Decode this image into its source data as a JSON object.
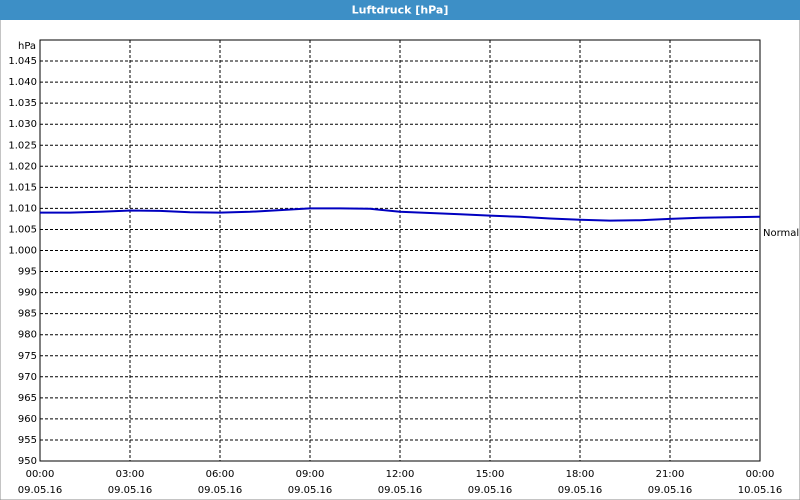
{
  "chart_data": {
    "type": "line",
    "title": "Luftdruck [hPa]",
    "y_label": "hPa",
    "x": [
      "09.05.16 00:00",
      "09.05.16 01:00",
      "09.05.16 02:00",
      "09.05.16 03:00",
      "09.05.16 04:00",
      "09.05.16 05:00",
      "09.05.16 06:00",
      "09.05.16 07:00",
      "09.05.16 08:00",
      "09.05.16 09:00",
      "09.05.16 10:00",
      "09.05.16 11:00",
      "09.05.16 12:00",
      "09.05.16 13:00",
      "09.05.16 14:00",
      "09.05.16 15:00",
      "09.05.16 16:00",
      "09.05.16 17:00",
      "09.05.16 18:00",
      "09.05.16 19:00",
      "09.05.16 20:00",
      "09.05.16 21:00",
      "09.05.16 22:00",
      "09.05.16 23:00",
      "10.05.16 00:00"
    ],
    "series": [
      {
        "name": "Normal",
        "color": "#0000c0",
        "values": [
          1009,
          1009,
          1009.2,
          1009.5,
          1009.4,
          1009.1,
          1009,
          1009.2,
          1009.6,
          1010,
          1010,
          1009.9,
          1009.2,
          1008.9,
          1008.6,
          1008.3,
          1008,
          1007.6,
          1007.3,
          1007.1,
          1007.2,
          1007.5,
          1007.8,
          1007.9,
          1008
        ]
      }
    ],
    "xlim": [
      "09.05.16 00:00",
      "10.05.16 00:00"
    ],
    "xticks": [
      {
        "value": "09.05.16 00:00",
        "label": [
          "00:00",
          "09.05.16"
        ]
      },
      {
        "value": "09.05.16 03:00",
        "label": [
          "03:00",
          "09.05.16"
        ]
      },
      {
        "value": "09.05.16 06:00",
        "label": [
          "06:00",
          "09.05.16"
        ]
      },
      {
        "value": "09.05.16 09:00",
        "label": [
          "09:00",
          "09.05.16"
        ]
      },
      {
        "value": "09.05.16 12:00",
        "label": [
          "12:00",
          "09.05.16"
        ]
      },
      {
        "value": "09.05.16 15:00",
        "label": [
          "15:00",
          "09.05.16"
        ]
      },
      {
        "value": "09.05.16 18:00",
        "label": [
          "18:00",
          "09.05.16"
        ]
      },
      {
        "value": "09.05.16 21:00",
        "label": [
          "21:00",
          "09.05.16"
        ]
      },
      {
        "value": "10.05.16 00:00",
        "label": [
          "00:00",
          "10.05.16"
        ]
      }
    ],
    "ylim": [
      950,
      1050
    ],
    "yticks": [
      950,
      955,
      960,
      965,
      970,
      975,
      980,
      985,
      990,
      995,
      {
        "value": 1000,
        "label": "1.000"
      },
      {
        "value": 1005,
        "label": "1.005"
      },
      {
        "value": 1010,
        "label": "1.010"
      },
      {
        "value": 1015,
        "label": "1.015"
      },
      {
        "value": 1020,
        "label": "1.020"
      },
      {
        "value": 1025,
        "label": "1.025"
      },
      {
        "value": 1030,
        "label": "1.030"
      },
      {
        "value": 1035,
        "label": "1.035"
      },
      {
        "value": 1040,
        "label": "1.040"
      },
      {
        "value": 1045,
        "label": "1.045"
      }
    ],
    "grid": true
  }
}
